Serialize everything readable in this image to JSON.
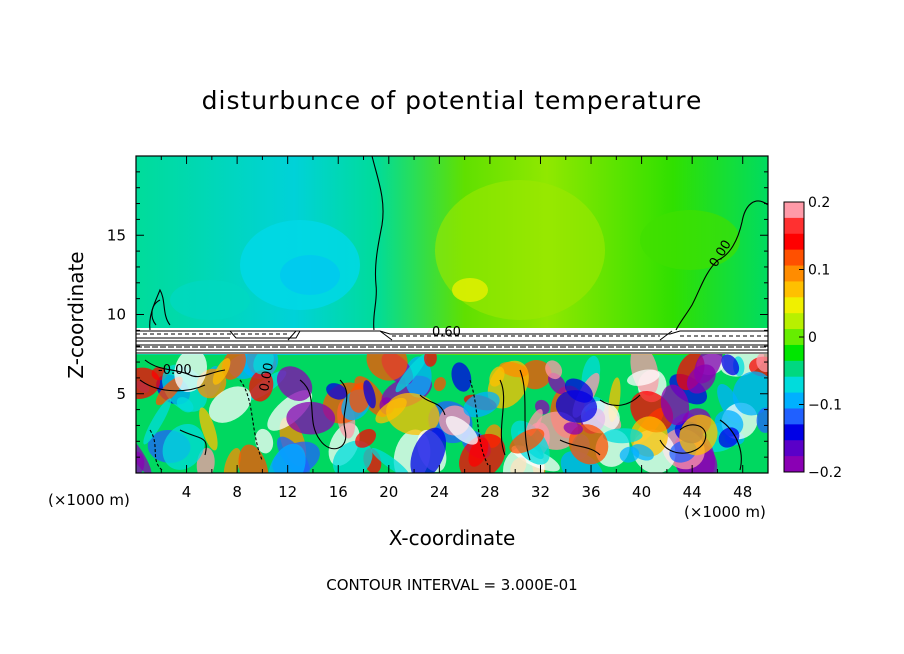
{
  "chart_data": {
    "type": "heatmap",
    "title": "disturbunce of potential temperature",
    "xlabel": "X-coordinate",
    "ylabel": "Z-coordinate",
    "x_unit": "(×1000 m)",
    "z_unit": "(×1000 m)",
    "xlim": [
      0,
      50
    ],
    "ylim": [
      0,
      20
    ],
    "x_ticks": [
      4,
      8,
      12,
      16,
      20,
      24,
      28,
      32,
      36,
      40,
      44,
      48
    ],
    "y_ticks": [
      5,
      10,
      15
    ],
    "colorbar": {
      "range": [
        -0.2,
        0.2
      ],
      "ticks": [
        "0.2",
        "0.1",
        "0",
        "−0.1",
        "−0.2"
      ],
      "colors": [
        "#ff9aa8",
        "#ff3030",
        "#ff0000",
        "#ff5000",
        "#ff8c00",
        "#ffc000",
        "#f0f000",
        "#b8f000",
        "#66ee00",
        "#00e600",
        "#00d880",
        "#00dcdc",
        "#00b0ff",
        "#2060ff",
        "#0000e6",
        "#5a00c8",
        "#8a00b4"
      ]
    },
    "contour_labels": [
      "0.60",
      "0.00",
      "-0.00",
      "0.00"
    ],
    "contour_interval_text": "CONTOUR INTERVAL = 3.000E-01"
  }
}
